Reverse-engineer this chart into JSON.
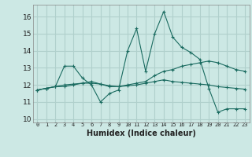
{
  "title": "",
  "xlabel": "Humidex (Indice chaleur)",
  "ylabel": "",
  "background_color": "#cce8e4",
  "grid_color": "#b0d0cc",
  "line_color": "#1a6b60",
  "xlim": [
    -0.5,
    23.5
  ],
  "ylim": [
    9.8,
    16.7
  ],
  "yticks": [
    10,
    11,
    12,
    13,
    14,
    15,
    16
  ],
  "xticks": [
    0,
    1,
    2,
    3,
    4,
    5,
    6,
    7,
    8,
    9,
    10,
    11,
    12,
    13,
    14,
    15,
    16,
    17,
    18,
    19,
    20,
    21,
    22,
    23
  ],
  "series": [
    [
      11.7,
      11.8,
      11.9,
      13.1,
      13.1,
      12.4,
      12.0,
      11.0,
      11.5,
      11.7,
      14.0,
      15.3,
      12.8,
      15.0,
      16.3,
      14.8,
      14.2,
      13.9,
      13.5,
      11.8,
      10.4,
      10.6,
      10.6,
      10.6
    ],
    [
      11.7,
      11.8,
      11.9,
      11.9,
      12.0,
      12.1,
      12.1,
      12.05,
      11.9,
      11.9,
      12.0,
      12.1,
      12.2,
      12.55,
      12.8,
      12.9,
      13.1,
      13.2,
      13.3,
      13.4,
      13.3,
      13.1,
      12.9,
      12.8
    ],
    [
      11.7,
      11.8,
      11.9,
      12.0,
      12.05,
      12.1,
      12.2,
      12.05,
      11.95,
      11.9,
      11.95,
      12.0,
      12.1,
      12.2,
      12.3,
      12.2,
      12.15,
      12.1,
      12.05,
      12.0,
      11.9,
      11.85,
      11.8,
      11.75
    ]
  ]
}
